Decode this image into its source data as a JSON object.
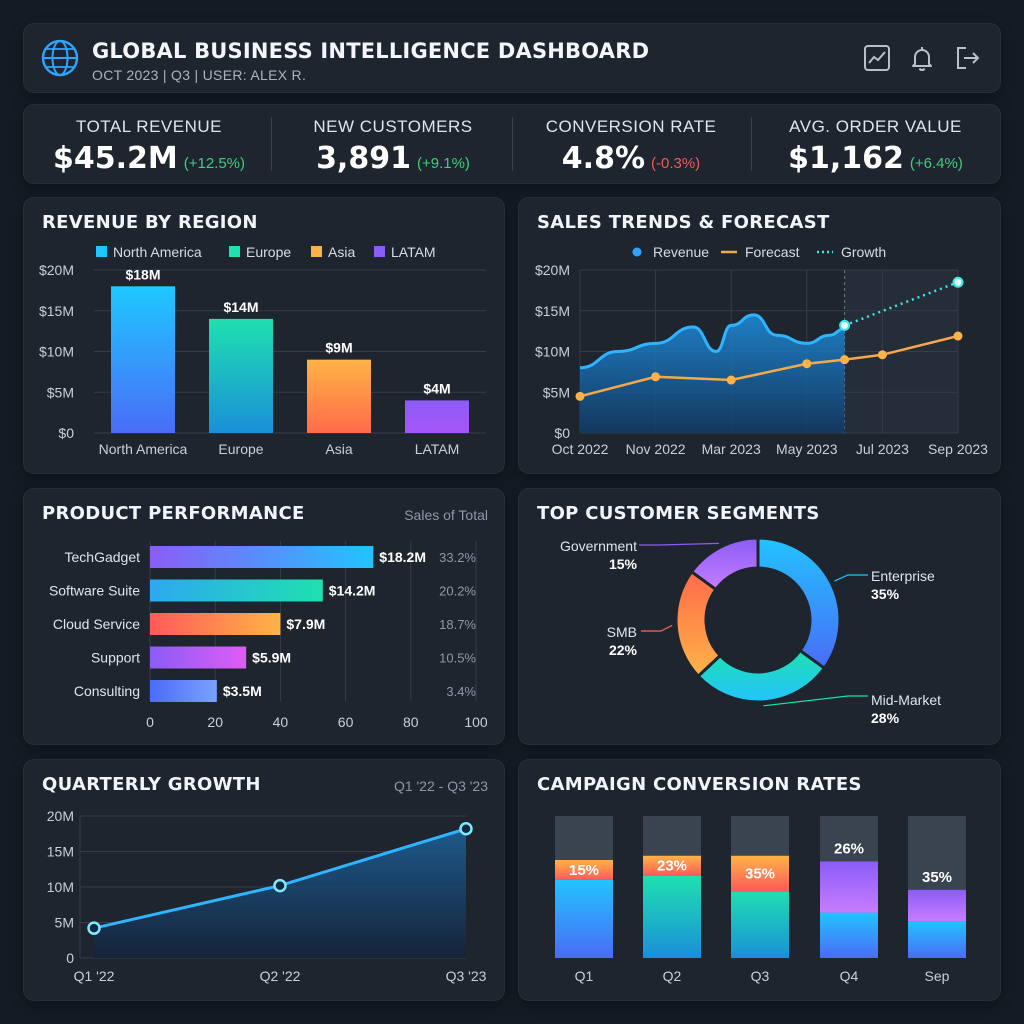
{
  "header": {
    "title": "GLOBAL BUSINESS INTELLIGENCE DASHBOARD",
    "subtitle": "OCT 2023 | Q3 | USER: ALEX R.",
    "icons": [
      "globe-icon",
      "chart-icon",
      "bell-icon",
      "logout-icon"
    ]
  },
  "kpis": [
    {
      "label": "TOTAL REVENUE",
      "value": "$45.2M",
      "change": "(+12.5%)",
      "trend": "up"
    },
    {
      "label": "NEW CUSTOMERS",
      "value": "3,891",
      "change": "(+9.1%)",
      "trend": "up"
    },
    {
      "label": "CONVERSION RATE",
      "value": "4.8%",
      "change": "(-0.3%)",
      "trend": "down"
    },
    {
      "label": "AVG. ORDER VALUE",
      "value": "$1,162",
      "change": "(+6.4%)",
      "trend": "up"
    }
  ],
  "colors": {
    "up": "#3ecf7a",
    "down": "#ef5b5b",
    "accent": "#2fa4ff"
  },
  "chart_data": [
    {
      "id": "revenue_by_region",
      "type": "bar",
      "title": "REVENUE BY REGION",
      "categories": [
        "North America",
        "Europe",
        "Asia",
        "LATAM"
      ],
      "values": [
        18,
        14,
        9,
        4
      ],
      "data_labels": [
        "$18M",
        "$14M",
        "$9M",
        "$4M"
      ],
      "legend": [
        "North America",
        "Europe",
        "Asia",
        "LATAM"
      ],
      "yticks": [
        "$0",
        "$5M",
        "$10M",
        "$15M",
        "$20M"
      ],
      "ylim": [
        0,
        20
      ],
      "colors": [
        [
          "#1ec8ff",
          "#4a6cf7"
        ],
        [
          "#1fe0b0",
          "#1a8fd8"
        ],
        [
          "#ffb347",
          "#ff6b4a"
        ],
        [
          "#8b5cf6",
          "#a855f7"
        ]
      ]
    },
    {
      "id": "sales_trends",
      "type": "line",
      "title": "SALES TRENDS & FORECAST",
      "legend": [
        "Revenue",
        "Forecast",
        "Growth"
      ],
      "xticks": [
        "Oct 2022",
        "Nov 2022",
        "Mar 2023",
        "May 2023",
        "Jul 2023",
        "Sep 2023"
      ],
      "yticks": [
        "$0",
        "$5M",
        "$10M",
        "$15M",
        "$20M"
      ],
      "ylim": [
        0,
        20
      ],
      "revenue": [
        [
          0,
          8
        ],
        [
          0.5,
          10
        ],
        [
          1,
          11
        ],
        [
          1.5,
          13
        ],
        [
          1.8,
          10
        ],
        [
          2,
          13.2
        ],
        [
          2.3,
          14.5
        ],
        [
          2.6,
          12
        ],
        [
          3,
          11
        ],
        [
          3.3,
          12
        ],
        [
          3.5,
          12.8
        ]
      ],
      "forecast": [
        [
          0,
          4.5
        ],
        [
          1,
          6.9
        ],
        [
          2,
          6.5
        ],
        [
          3,
          8.5
        ],
        [
          3.5,
          9
        ],
        [
          4,
          9.6
        ],
        [
          5,
          11.9
        ]
      ],
      "growth": [
        [
          3.5,
          13.2
        ],
        [
          5,
          18.5
        ]
      ],
      "forecast_start": 3.5
    },
    {
      "id": "product_performance",
      "type": "bar",
      "orientation": "horizontal",
      "title": "PRODUCT PERFORMANCE",
      "subtitle": "Sales of Total",
      "categories": [
        "TechGadget",
        "Software Suite",
        "Cloud Service",
        "Support",
        "Consulting"
      ],
      "values": [
        68.5,
        53,
        40,
        29.5,
        20.5
      ],
      "data_labels": [
        "$18.2M",
        "$14.2M",
        "$7.9M",
        "$5.9M",
        "$3.5M"
      ],
      "shares": [
        "33.2%",
        "20.2%",
        "18.7%",
        "10.5%",
        "3.4%"
      ],
      "xticks": [
        "0",
        "20",
        "40",
        "60",
        "80",
        "100"
      ],
      "xlim": [
        0,
        100
      ],
      "colors": [
        [
          "#8b5cf6",
          "#22c3ff"
        ],
        [
          "#2ea8f0",
          "#1fe0b0"
        ],
        [
          "#ff5a5a",
          "#ffb347"
        ],
        [
          "#8b5cf6",
          "#e05cf6"
        ],
        [
          "#4a6cf7",
          "#7aa2ff"
        ]
      ]
    },
    {
      "id": "customer_segments",
      "type": "pie",
      "donut": true,
      "title": "TOP CUSTOMER SEGMENTS",
      "labels": [
        "Enterprise",
        "Mid-Market",
        "SMB",
        "Government"
      ],
      "values": [
        35,
        28,
        22,
        15
      ],
      "percent_labels": [
        "35%",
        "28%",
        "22%",
        "15%"
      ],
      "colors": [
        [
          "#22c3ff",
          "#4a6cf7"
        ],
        [
          "#1fe0b0",
          "#22c3ff"
        ],
        [
          "#ff6b4a",
          "#ffb347"
        ],
        [
          "#8b5cf6",
          "#c77dff"
        ]
      ]
    },
    {
      "id": "quarterly_growth",
      "type": "area",
      "title": "QUARTERLY GROWTH",
      "subtitle": "Q1 '22 - Q3 '23",
      "x": [
        "Q1 '22",
        "Q2 '22",
        "Q3 '23"
      ],
      "values": [
        4.2,
        10.2,
        18.2
      ],
      "yticks": [
        "0",
        "5M",
        "10M",
        "15M",
        "20M"
      ],
      "ylim": [
        0,
        20
      ]
    },
    {
      "id": "campaign_conversion",
      "type": "bar",
      "stacked": true,
      "title": "CAMPAIGN CONVERSION RATES",
      "categories": [
        "Q1",
        "Q2",
        "Q3",
        "Q4",
        "Sep"
      ],
      "base": [
        55,
        58,
        47,
        32,
        26
      ],
      "rate": [
        15,
        23,
        35,
        26,
        35
      ],
      "rate_share": [
        14,
        14,
        25,
        36,
        22
      ],
      "rate_labels": [
        "15%",
        "23%",
        "35%",
        "26%",
        "35%"
      ],
      "ylim": [
        0,
        100
      ]
    }
  ]
}
